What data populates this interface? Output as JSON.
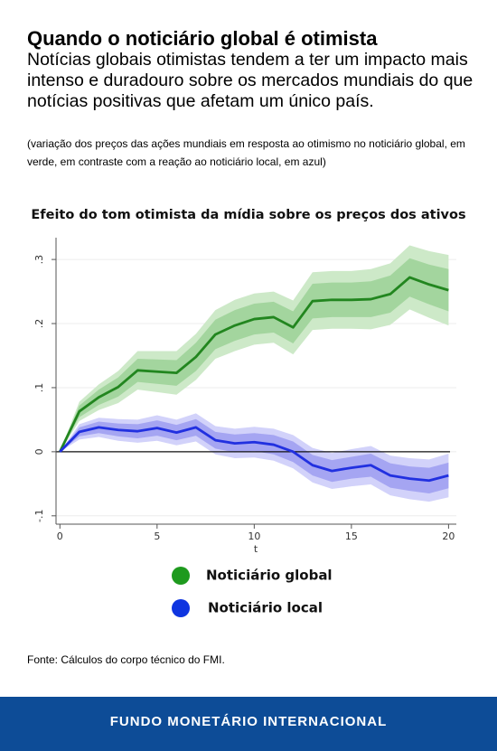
{
  "header": {
    "title": "Quando o noticiário global é otimista",
    "subtitle": "Notícias globais otimistas tendem a ter um impacto mais intenso e duradouro sobre os mercados mundiais do que notícias positivas que afetam um único país.",
    "note": "(variação dos preços das ações mundiais em resposta ao otimismo no noticiário global, em verde, em contraste com a reação ao noticiário local, em azul)"
  },
  "chart_data": {
    "type": "line",
    "title": "Efeito do tom otimista da mídia sobre os preços dos ativos",
    "x_label": "t",
    "x": [
      0,
      1,
      2,
      3,
      4,
      5,
      6,
      7,
      8,
      9,
      10,
      11,
      12,
      13,
      14,
      15,
      16,
      17,
      18,
      19,
      20
    ],
    "xlim": [
      -0.2,
      20.4
    ],
    "xticks": [
      0,
      5,
      10,
      15,
      20
    ],
    "ylim": [
      -0.113,
      0.334
    ],
    "yticks": [
      {
        "value": -0.1,
        "label": "-.1"
      },
      0,
      {
        "value": 0.1,
        "label": ".1"
      },
      {
        "value": 0.2,
        "label": ".2"
      },
      {
        "value": 0.3,
        "label": ".3"
      }
    ],
    "grid": true,
    "series": [
      {
        "name": "Noticiário global",
        "color": "#22861f",
        "legend_color": "#1e9a1e",
        "values": [
          0,
          0.063,
          0.085,
          0.101,
          0.127,
          0.125,
          0.123,
          0.148,
          0.183,
          0.197,
          0.207,
          0.21,
          0.194,
          0.235,
          0.237,
          0.237,
          0.238,
          0.246,
          0.272,
          0.261,
          0.252
        ],
        "bands": [
          {
            "color": "#cde9c8",
            "lower": [
              0,
              0.048,
              0.065,
              0.076,
              0.097,
              0.093,
              0.089,
              0.112,
              0.145,
              0.157,
              0.167,
              0.17,
              0.152,
              0.19,
              0.192,
              0.192,
              0.191,
              0.198,
              0.222,
              0.209,
              0.197
            ],
            "upper": [
              0,
              0.078,
              0.105,
              0.126,
              0.157,
              0.157,
              0.157,
              0.184,
              0.221,
              0.237,
              0.247,
              0.25,
              0.236,
              0.28,
              0.282,
              0.282,
              0.285,
              0.294,
              0.322,
              0.313,
              0.307
            ]
          },
          {
            "color": "#a3d59e",
            "lower": [
              0,
              0.054,
              0.073,
              0.086,
              0.109,
              0.106,
              0.103,
              0.126,
              0.16,
              0.173,
              0.183,
              0.186,
              0.169,
              0.208,
              0.21,
              0.21,
              0.21,
              0.217,
              0.242,
              0.23,
              0.219
            ],
            "upper": [
              0,
              0.072,
              0.097,
              0.116,
              0.145,
              0.144,
              0.143,
              0.17,
              0.206,
              0.221,
              0.231,
              0.234,
              0.219,
              0.262,
              0.264,
              0.264,
              0.266,
              0.275,
              0.302,
              0.292,
              0.285
            ]
          }
        ]
      },
      {
        "name": "Noticiário local",
        "color": "#2130e0",
        "legend_color": "#0f35e0",
        "values": [
          0,
          0.031,
          0.038,
          0.034,
          0.032,
          0.037,
          0.03,
          0.038,
          0.018,
          0.013,
          0.015,
          0.011,
          0,
          -0.021,
          -0.03,
          -0.025,
          -0.021,
          -0.037,
          -0.042,
          -0.045,
          -0.037
        ],
        "bands": [
          {
            "color": "#d2d2fa",
            "lower": [
              0,
              0.019,
              0.023,
              0.017,
              0.014,
              0.017,
              0.01,
              0.016,
              -0.004,
              -0.01,
              -0.009,
              -0.014,
              -0.026,
              -0.048,
              -0.058,
              -0.054,
              -0.051,
              -0.068,
              -0.074,
              -0.078,
              -0.071
            ],
            "upper": [
              0,
              0.043,
              0.053,
              0.051,
              0.05,
              0.057,
              0.05,
              0.06,
              0.04,
              0.036,
              0.039,
              0.036,
              0.026,
              0.006,
              -0.002,
              0.004,
              0.009,
              -0.006,
              -0.01,
              -0.012,
              -0.003
            ]
          },
          {
            "color": "#a5a5f2",
            "lower": [
              0,
              0.024,
              0.029,
              0.024,
              0.021,
              0.025,
              0.018,
              0.025,
              0.005,
              -0.001,
              0.001,
              -0.004,
              -0.016,
              -0.037,
              -0.047,
              -0.042,
              -0.039,
              -0.056,
              -0.061,
              -0.065,
              -0.057
            ],
            "upper": [
              0,
              0.038,
              0.047,
              0.044,
              0.043,
              0.049,
              0.042,
              0.051,
              0.031,
              0.027,
              0.029,
              0.026,
              0.016,
              -0.005,
              -0.013,
              -0.008,
              -0.003,
              -0.018,
              -0.023,
              -0.025,
              -0.017
            ]
          }
        ]
      }
    ]
  },
  "source": "Fonte: Cálculos do corpo técnico do FMI.",
  "footer": "FUNDO MONETÁRIO INTERNACIONAL"
}
